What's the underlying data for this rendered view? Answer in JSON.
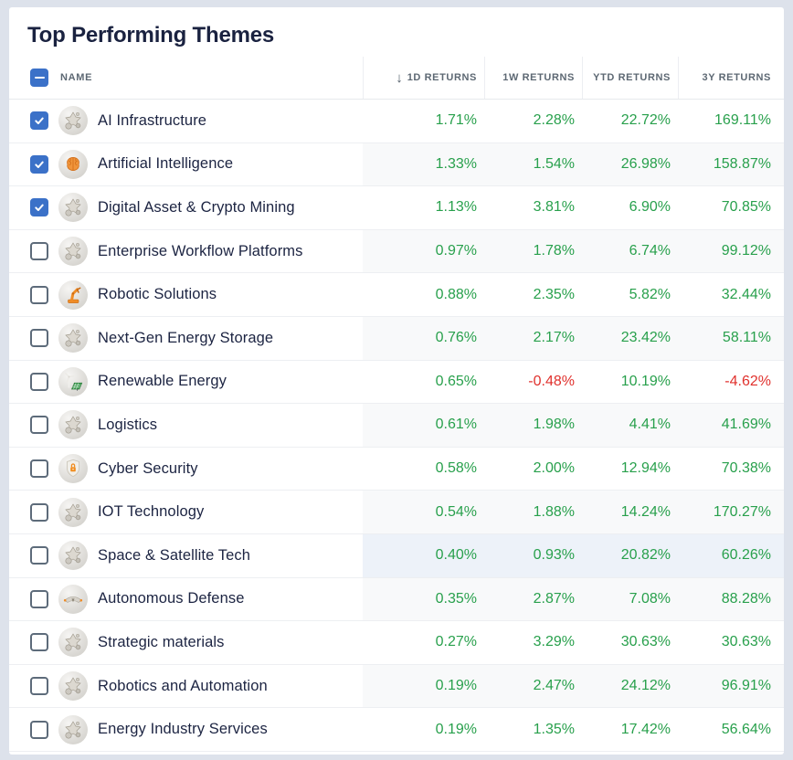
{
  "page_title": "Top Performing Themes",
  "colors": {
    "positive": "#28a04c",
    "negative": "#e0312d",
    "checkbox_accent": "#3b71c8",
    "row_stripe": "#f8f9fa",
    "row_highlight": "#edf2f9",
    "title_text": "#1a2240"
  },
  "table": {
    "header": {
      "select_all_state": "indeterminate",
      "name_label": "NAME",
      "sort_icon_glyph": "↓",
      "columns": [
        "1D RETURNS",
        "1W RETURNS",
        "YTD RETURNS",
        "3Y RETURNS"
      ]
    },
    "rows": [
      {
        "name": "AI Infrastructure",
        "icon": "generic-theme",
        "checked": true,
        "highlighted": false,
        "returns": [
          "1.71%",
          "2.28%",
          "22.72%",
          "169.11%"
        ]
      },
      {
        "name": "Artificial Intelligence",
        "icon": "brain",
        "checked": true,
        "highlighted": false,
        "returns": [
          "1.33%",
          "1.54%",
          "26.98%",
          "158.87%"
        ]
      },
      {
        "name": "Digital Asset & Crypto Mining",
        "icon": "generic-theme",
        "checked": true,
        "highlighted": false,
        "returns": [
          "1.13%",
          "3.81%",
          "6.90%",
          "70.85%"
        ]
      },
      {
        "name": "Enterprise Workflow Platforms",
        "icon": "generic-theme",
        "checked": false,
        "highlighted": false,
        "returns": [
          "0.97%",
          "1.78%",
          "6.74%",
          "99.12%"
        ]
      },
      {
        "name": "Robotic Solutions",
        "icon": "robot-arm",
        "checked": false,
        "highlighted": false,
        "returns": [
          "0.88%",
          "2.35%",
          "5.82%",
          "32.44%"
        ]
      },
      {
        "name": "Next-Gen Energy Storage",
        "icon": "generic-theme",
        "checked": false,
        "highlighted": false,
        "returns": [
          "0.76%",
          "2.17%",
          "23.42%",
          "58.11%"
        ]
      },
      {
        "name": "Renewable Energy",
        "icon": "renewable",
        "checked": false,
        "highlighted": false,
        "returns": [
          "0.65%",
          "-0.48%",
          "10.19%",
          "-4.62%"
        ]
      },
      {
        "name": "Logistics",
        "icon": "generic-theme",
        "checked": false,
        "highlighted": false,
        "returns": [
          "0.61%",
          "1.98%",
          "4.41%",
          "41.69%"
        ]
      },
      {
        "name": "Cyber Security",
        "icon": "shield-lock",
        "checked": false,
        "highlighted": false,
        "returns": [
          "0.58%",
          "2.00%",
          "12.94%",
          "70.38%"
        ]
      },
      {
        "name": "IOT Technology",
        "icon": "generic-theme",
        "checked": false,
        "highlighted": false,
        "returns": [
          "0.54%",
          "1.88%",
          "14.24%",
          "170.27%"
        ]
      },
      {
        "name": "Space & Satellite Tech",
        "icon": "generic-theme",
        "checked": false,
        "highlighted": true,
        "returns": [
          "0.40%",
          "0.93%",
          "20.82%",
          "60.26%"
        ]
      },
      {
        "name": "Autonomous Defense",
        "icon": "drone",
        "checked": false,
        "highlighted": false,
        "returns": [
          "0.35%",
          "2.87%",
          "7.08%",
          "88.28%"
        ]
      },
      {
        "name": "Strategic materials",
        "icon": "generic-theme",
        "checked": false,
        "highlighted": false,
        "returns": [
          "0.27%",
          "3.29%",
          "30.63%",
          "30.63%"
        ]
      },
      {
        "name": "Robotics and Automation",
        "icon": "generic-theme",
        "checked": false,
        "highlighted": false,
        "returns": [
          "0.19%",
          "2.47%",
          "24.12%",
          "96.91%"
        ]
      },
      {
        "name": "Energy Industry Services",
        "icon": "generic-theme",
        "checked": false,
        "highlighted": false,
        "returns": [
          "0.19%",
          "1.35%",
          "17.42%",
          "56.64%"
        ]
      }
    ]
  }
}
